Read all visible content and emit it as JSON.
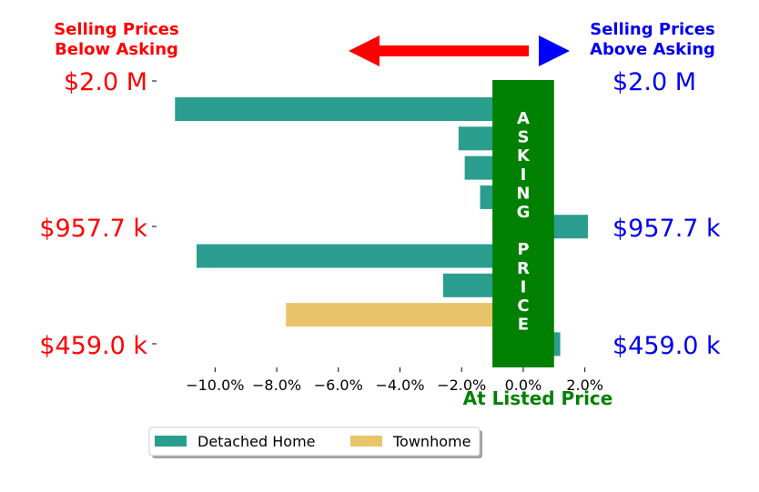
{
  "chart_data": {
    "type": "bar",
    "orientation": "horizontal",
    "categories": [
      "$2.0 M",
      "",
      "",
      "",
      "$957.7 k",
      "",
      "",
      "",
      "$459.0 k"
    ],
    "series": [
      {
        "name": "Detached Home",
        "color": "#2a9d8f",
        "values": [
          -11.3,
          -2.1,
          -1.9,
          -1.4,
          2.1,
          -10.6,
          -2.6,
          null,
          1.2
        ]
      },
      {
        "name": "Townhome",
        "color": "#e9c46a",
        "values": [
          null,
          null,
          null,
          null,
          null,
          null,
          null,
          -7.7,
          null
        ]
      }
    ],
    "xlim": [
      -11.9,
      2.6
    ],
    "xticks": [
      "−10.0%",
      "−8.0%",
      "−6.0%",
      "−4.0%",
      "−2.0%",
      "0.0%",
      "2.0%"
    ],
    "xtick_values": [
      -10,
      -8,
      -6,
      -4,
      -2,
      0,
      2
    ],
    "left_price_labels": [
      "$2.0 M",
      "$957.7 k",
      "$459.0 k"
    ],
    "right_price_labels": [
      "$2.0 M",
      "$957.7 k",
      "$459.0 k"
    ],
    "left_heading": [
      "Selling Prices",
      "Below Asking"
    ],
    "right_heading": [
      "Selling Prices",
      "Above Asking"
    ],
    "band_letters": [
      "A",
      "S",
      "K",
      "I",
      "N",
      "G",
      "",
      "P",
      "R",
      "I",
      "C",
      "E"
    ],
    "band_range": [
      -1,
      1
    ],
    "band_color": "#008000",
    "xlabel": "At Listed Price",
    "legend": {
      "position": "bottom-left",
      "entries": [
        "Detached Home",
        "Townhome"
      ]
    },
    "arrow_colors": {
      "left": "#ff0000",
      "right": "#0000ff"
    },
    "heading_colors": {
      "left": "#ff0000",
      "right": "#0000ee"
    }
  }
}
